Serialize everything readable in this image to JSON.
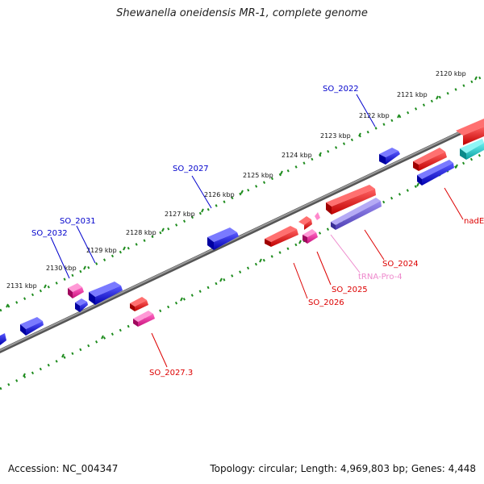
{
  "title": "Shewanella oneidensis MR-1, complete genome",
  "footer": {
    "accession": "Accession: NC_004347",
    "summary": "Topology: circular; Length: 4,969,803 bp; Genes: 4,448"
  },
  "colors": {
    "backbone": "#777777",
    "ticks": "#1e8c1e",
    "forward_gene": "#1010e0",
    "reverse_gene": "#ee1111",
    "trna": "#ee2299",
    "rrna_like": "#6f5fd0",
    "other": "#11c4c4"
  },
  "ticks": [
    "2120 kbp",
    "2121 kbp",
    "2122 kbp",
    "2123 kbp",
    "2124 kbp",
    "2125 kbp",
    "2126 kbp",
    "2127 kbp",
    "2128 kbp",
    "2129 kbp",
    "2130 kbp",
    "2131 kbp"
  ],
  "labels": {
    "SO_2022": "SO_2022",
    "SO_2027": "SO_2027",
    "SO_2031": "SO_2031",
    "SO_2032": "SO_2032",
    "nadE": "nadE",
    "SO_2024": "SO_2024",
    "tRNA_Pro_4": "tRNA-Pro-4",
    "SO_2025": "SO_2025",
    "SO_2026": "SO_2026",
    "SO_2027_3": "SO_2027.3"
  }
}
